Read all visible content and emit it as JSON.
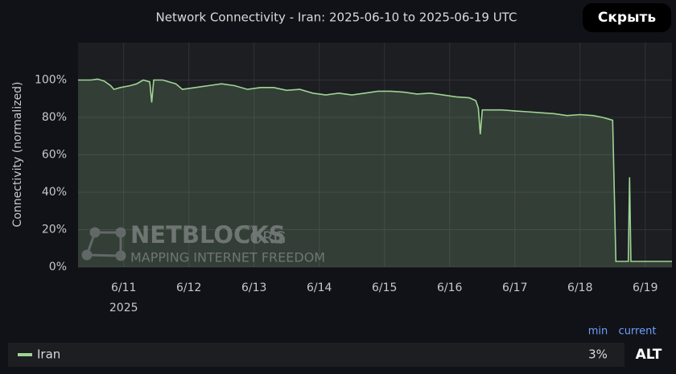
{
  "chart_data": {
    "type": "line",
    "title": "Network Connectivity - Iran: 2025-06-10 to 2025-06-19 UTC",
    "y_label": "Connectivity (normalized)",
    "x_year": "2025",
    "xlim": [
      10.3,
      19.41
    ],
    "xticks": [
      {
        "value": 11,
        "label": "6/11"
      },
      {
        "value": 12,
        "label": "6/12"
      },
      {
        "value": 13,
        "label": "6/13"
      },
      {
        "value": 14,
        "label": "6/14"
      },
      {
        "value": 15,
        "label": "6/15"
      },
      {
        "value": 16,
        "label": "6/16"
      },
      {
        "value": 17,
        "label": "6/17"
      },
      {
        "value": 18,
        "label": "6/18"
      },
      {
        "value": 19,
        "label": "6/19"
      }
    ],
    "ylim": [
      0,
      120
    ],
    "yticks": [
      {
        "value": 0,
        "label": "0%"
      },
      {
        "value": 20,
        "label": "20%"
      },
      {
        "value": 40,
        "label": "40%"
      },
      {
        "value": 60,
        "label": "60%"
      },
      {
        "value": 80,
        "label": "80%"
      },
      {
        "value": 100,
        "label": "100%"
      }
    ],
    "grid": true,
    "x": [
      10.3,
      10.5,
      10.6,
      10.7,
      10.8,
      10.85,
      10.95,
      11.1,
      11.2,
      11.3,
      11.4,
      11.43,
      11.46,
      11.6,
      11.8,
      11.9,
      12.1,
      12.3,
      12.5,
      12.7,
      12.9,
      13.1,
      13.3,
      13.5,
      13.7,
      13.9,
      14.1,
      14.3,
      14.5,
      14.7,
      14.9,
      15.1,
      15.3,
      15.5,
      15.7,
      15.9,
      16.1,
      16.3,
      16.4,
      16.44,
      16.47,
      16.5,
      16.6,
      16.8,
      17.0,
      17.2,
      17.4,
      17.6,
      17.8,
      18.0,
      18.2,
      18.35,
      18.45,
      18.5,
      18.55,
      18.74,
      18.76,
      18.78,
      18.82,
      19.0,
      19.2,
      19.41
    ],
    "series": [
      {
        "name": "Iran",
        "color": "#9fd494",
        "values": [
          100,
          100,
          100.5,
          99.5,
          97,
          95,
          96,
          97,
          98,
          100,
          99,
          88,
          100,
          100,
          98,
          95,
          96,
          97,
          98,
          97,
          95,
          96,
          96,
          94.5,
          95,
          93,
          92,
          93,
          92,
          93,
          94,
          94,
          93.5,
          92.5,
          93,
          92,
          91,
          90.5,
          89,
          85,
          71,
          84,
          84,
          84,
          83.5,
          83,
          82.5,
          82,
          81,
          81.5,
          81,
          80,
          79,
          78.5,
          3,
          3,
          48,
          3,
          3,
          3,
          3,
          3
        ],
        "min": {
          "value": 3,
          "label": "3%"
        }
      }
    ],
    "legend_columns": [
      "min",
      "current"
    ],
    "hide_button": "Скрыть",
    "alt_button": "ALT",
    "watermark": {
      "brand": "NETBLOCKS",
      "tm": "TM",
      "domain": ".ORG",
      "tagline": "MAPPING INTERNET FREEDOM"
    }
  }
}
